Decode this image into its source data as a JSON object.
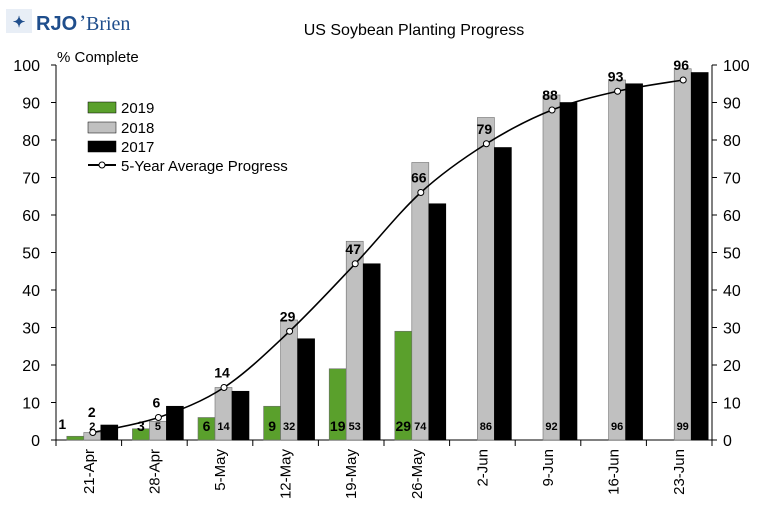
{
  "logo": {
    "mark": "RJO",
    "rest": "Brien",
    "apostrophe": "’",
    "color": "#1f4e8c"
  },
  "chart_data": {
    "type": "bar",
    "title": "US Soybean Planting Progress",
    "ylabel": "% Complete",
    "xlabel": "",
    "ylim": [
      0,
      100
    ],
    "y_ticks": [
      "0",
      "10",
      "20",
      "30",
      "40",
      "50",
      "60",
      "70",
      "80",
      "90",
      "100"
    ],
    "y_tick_values": [
      0,
      10,
      20,
      30,
      40,
      50,
      60,
      70,
      80,
      90,
      100
    ],
    "secondary_y_axis": true,
    "grid": false,
    "legend_position": "top-left",
    "categories": [
      "21-Apr",
      "28-Apr",
      "5-May",
      "12-May",
      "19-May",
      "26-May",
      "2-Jun",
      "9-Jun",
      "16-Jun",
      "23-Jun"
    ],
    "series": [
      {
        "name": "2019",
        "kind": "bar",
        "color": "#5aa02c",
        "values": [
          1,
          3,
          6,
          9,
          19,
          29,
          null,
          null,
          null,
          null
        ],
        "labels": [
          "1",
          "3",
          "6",
          "9",
          "19",
          "29",
          "",
          "",
          "",
          ""
        ]
      },
      {
        "name": "2018",
        "kind": "bar",
        "color": "#c0c0c0",
        "values": [
          2,
          5,
          14,
          32,
          53,
          74,
          86,
          92,
          96,
          99
        ],
        "labels": [
          "2",
          "5",
          "14",
          "32",
          "53",
          "74",
          "86",
          "92",
          "96",
          "99"
        ]
      },
      {
        "name": "2017",
        "kind": "bar",
        "color": "#000000",
        "values": [
          4,
          9,
          13,
          27,
          47,
          63,
          78,
          90,
          95,
          98
        ],
        "labels": []
      },
      {
        "name": "5-Year Average Progress",
        "kind": "line",
        "color": "#000000",
        "values": [
          2,
          6,
          14,
          29,
          47,
          66,
          79,
          88,
          93,
          96
        ],
        "labels": [
          "2",
          "6",
          "14",
          "29",
          "47",
          "66",
          "79",
          "88",
          "93",
          "96"
        ]
      }
    ]
  }
}
